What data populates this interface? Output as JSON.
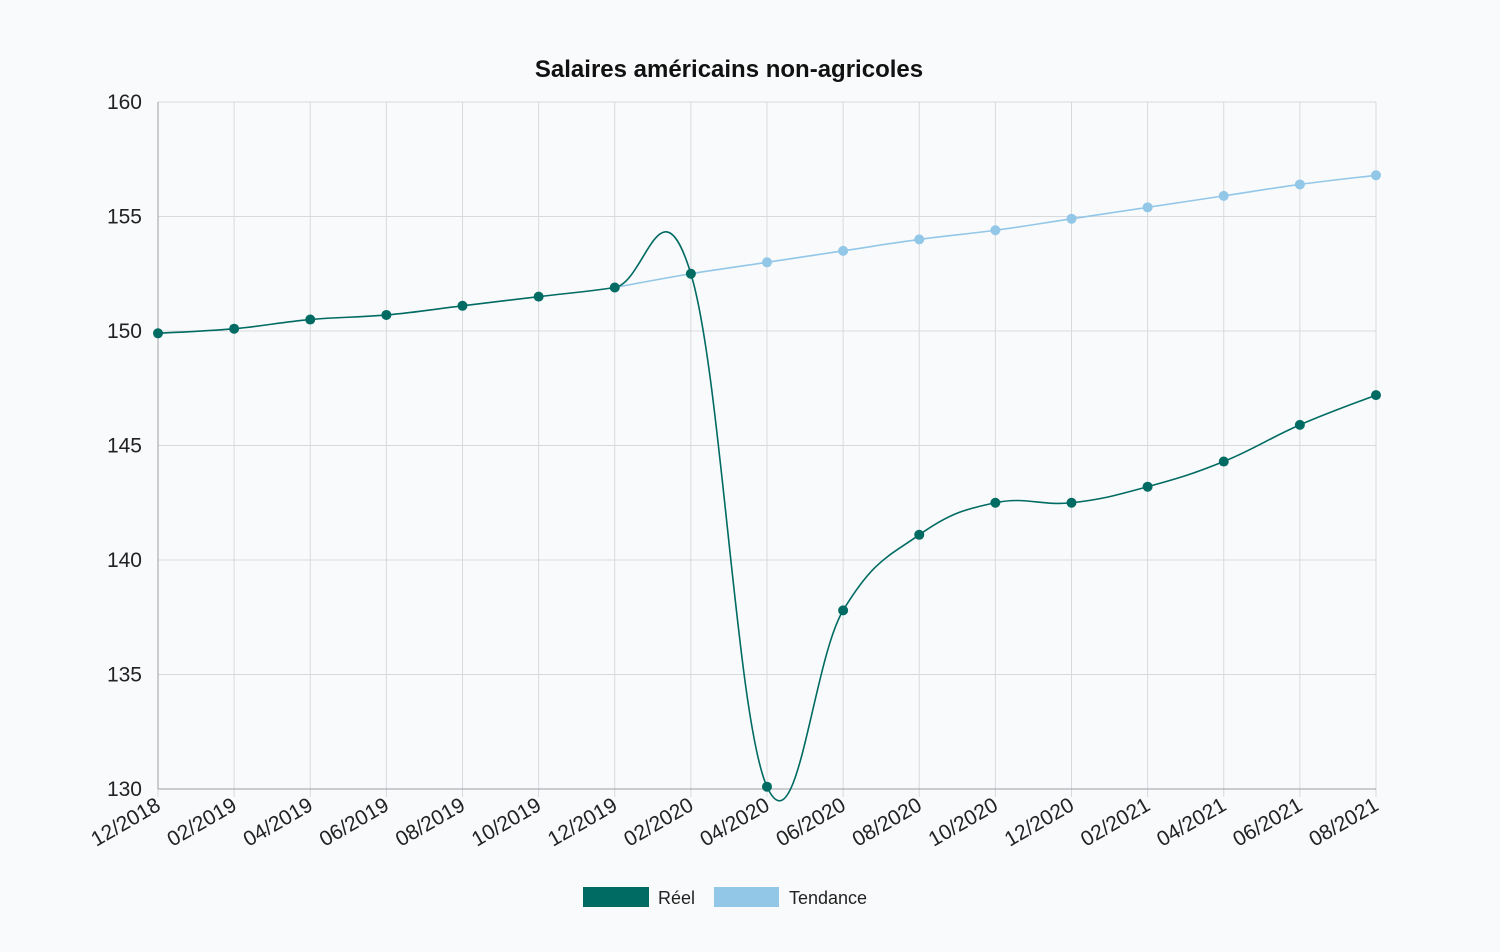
{
  "chart_data": {
    "type": "line",
    "title": "Salaires américains non-agricoles",
    "xlabel": "",
    "ylabel": "",
    "categories": [
      "12/2018",
      "02/2019",
      "04/2019",
      "06/2019",
      "08/2019",
      "10/2019",
      "12/2019",
      "02/2020",
      "04/2020",
      "06/2020",
      "08/2020",
      "10/2020",
      "12/2020",
      "02/2021",
      "04/2021",
      "06/2021",
      "08/2021"
    ],
    "ylim": [
      130,
      160
    ],
    "yticks": [
      "130",
      "135",
      "140",
      "145",
      "150",
      "155",
      "160"
    ],
    "grid": true,
    "legend_position": "bottom",
    "series": [
      {
        "name": "Réel",
        "color": "#006b63",
        "values": [
          149.9,
          150.1,
          150.5,
          150.7,
          151.1,
          151.5,
          151.9,
          152.5,
          130.1,
          137.8,
          141.1,
          142.5,
          142.5,
          143.2,
          144.3,
          145.9,
          147.2
        ]
      },
      {
        "name": "Tendance",
        "color": "#92c7e8",
        "values": [
          null,
          null,
          null,
          null,
          null,
          null,
          151.9,
          152.5,
          153.0,
          153.5,
          154.0,
          154.4,
          154.9,
          155.4,
          155.9,
          156.4,
          156.8
        ]
      }
    ]
  }
}
